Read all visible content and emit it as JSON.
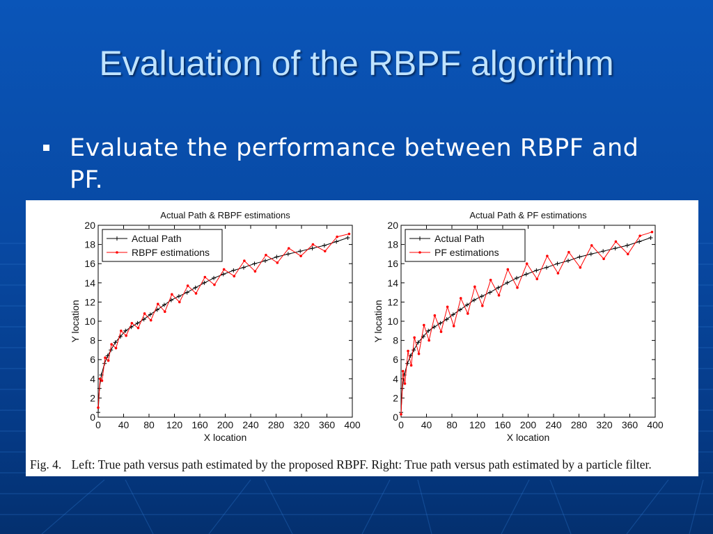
{
  "slide": {
    "title": "Evaluation of the RBPF algorithm",
    "bullet": "Evaluate the performance between RBPF and PF."
  },
  "figure": {
    "caption_label": "Fig. 4.",
    "caption_text": "Left: True path versus path estimated by the proposed RBPF. Right: True path versus path estimated by a particle filter."
  },
  "chart_data": [
    {
      "type": "line",
      "title": "Actual Path & RBPF estimations",
      "xlabel": "X location",
      "ylabel": "Y location",
      "xlim": [
        0,
        400
      ],
      "ylim": [
        0,
        20
      ],
      "xticks": [
        0,
        40,
        80,
        120,
        160,
        200,
        240,
        280,
        320,
        360,
        400
      ],
      "yticks": [
        0,
        2,
        4,
        6,
        8,
        10,
        12,
        14,
        16,
        18,
        20
      ],
      "legend": "top-left",
      "series": [
        {
          "name": "Actual Path",
          "color": "#000000",
          "marker": "plus",
          "x": [
            0,
            2,
            5,
            10,
            15,
            20,
            27,
            35,
            43,
            52,
            62,
            72,
            82,
            93,
            104,
            115,
            127,
            140,
            153,
            167,
            182,
            197,
            213,
            229,
            246,
            263,
            281,
            299,
            318,
            337,
            356,
            375,
            393
          ],
          "y": [
            0.5,
            3.0,
            4.4,
            5.6,
            6.4,
            7.0,
            7.8,
            8.4,
            9.0,
            9.4,
            9.8,
            10.2,
            10.7,
            11.2,
            11.7,
            12.2,
            12.6,
            13.0,
            13.5,
            14.0,
            14.5,
            14.9,
            15.3,
            15.6,
            16.0,
            16.3,
            16.7,
            17.0,
            17.3,
            17.6,
            17.9,
            18.3,
            18.7
          ]
        },
        {
          "name": "RBPF estimations",
          "color": "#ff0000",
          "marker": "dot",
          "x": [
            0,
            3,
            6,
            11,
            16,
            21,
            28,
            36,
            44,
            53,
            63,
            73,
            83,
            94,
            105,
            116,
            128,
            141,
            154,
            168,
            183,
            198,
            214,
            230,
            247,
            264,
            282,
            300,
            319,
            338,
            357,
            376,
            395
          ],
          "y": [
            1.0,
            4.0,
            3.8,
            6.2,
            5.9,
            7.6,
            7.2,
            9.0,
            8.5,
            9.8,
            9.3,
            10.8,
            10.1,
            11.8,
            11.0,
            12.8,
            12.0,
            13.7,
            12.9,
            14.6,
            13.8,
            15.4,
            14.7,
            16.3,
            15.2,
            16.9,
            16.1,
            17.6,
            16.8,
            18.0,
            17.3,
            18.8,
            19.1
          ]
        }
      ]
    },
    {
      "type": "line",
      "title": "Actual Path & PF estimations",
      "xlabel": "X location",
      "ylabel": "Y location",
      "xlim": [
        0,
        400
      ],
      "ylim": [
        0,
        20
      ],
      "xticks": [
        0,
        40,
        80,
        120,
        160,
        200,
        240,
        280,
        320,
        360,
        400
      ],
      "yticks": [
        0,
        2,
        4,
        6,
        8,
        10,
        12,
        14,
        16,
        18,
        20
      ],
      "legend": "top-left",
      "series": [
        {
          "name": "Actual Path",
          "color": "#000000",
          "marker": "plus",
          "x": [
            0,
            2,
            5,
            10,
            15,
            20,
            27,
            35,
            43,
            52,
            62,
            72,
            82,
            93,
            104,
            115,
            127,
            140,
            153,
            167,
            182,
            197,
            213,
            229,
            246,
            263,
            281,
            299,
            318,
            337,
            356,
            375,
            393
          ],
          "y": [
            0.5,
            3.0,
            4.4,
            5.6,
            6.4,
            7.0,
            7.8,
            8.4,
            9.0,
            9.4,
            9.8,
            10.2,
            10.7,
            11.2,
            11.7,
            12.2,
            12.6,
            13.0,
            13.5,
            14.0,
            14.5,
            14.9,
            15.3,
            15.6,
            16.0,
            16.3,
            16.7,
            17.0,
            17.3,
            17.6,
            17.9,
            18.3,
            18.7
          ]
        },
        {
          "name": "PF estimations",
          "color": "#ff0000",
          "marker": "dot",
          "x": [
            0,
            3,
            6,
            11,
            16,
            21,
            28,
            36,
            44,
            53,
            63,
            73,
            83,
            94,
            105,
            116,
            128,
            141,
            154,
            168,
            183,
            198,
            214,
            230,
            247,
            264,
            282,
            300,
            319,
            338,
            357,
            376,
            395
          ],
          "y": [
            0.3,
            4.8,
            3.5,
            6.9,
            5.4,
            8.3,
            6.6,
            9.6,
            8.0,
            10.6,
            8.9,
            11.5,
            9.5,
            12.4,
            10.8,
            13.6,
            11.6,
            14.3,
            12.7,
            15.4,
            13.5,
            16.0,
            14.4,
            16.8,
            15.0,
            17.2,
            15.6,
            17.9,
            16.5,
            18.3,
            17.0,
            18.9,
            19.3
          ]
        }
      ]
    }
  ]
}
